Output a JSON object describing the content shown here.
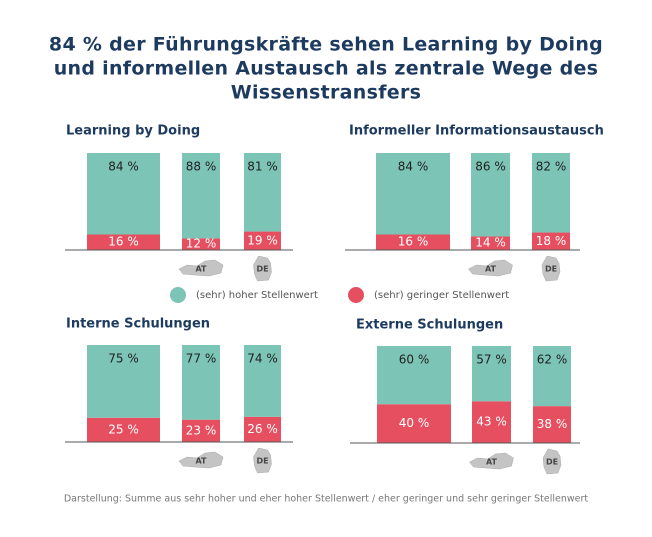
{
  "title": [
    "84 % der Führungskräfte sehen Learning by Doing",
    "und informellen Austausch als zentrale Wege des",
    "Wissenstransfers"
  ],
  "note": "Darstellung: Summe aus sehr hoher und eher hoher Stellenwert / eher geringer und sehr geringer Stellenwert",
  "chart_data": [
    {
      "type": "stacked_bar",
      "title": "Learning by Doing",
      "categories": [
        null,
        "AT",
        "DE"
      ],
      "ylim": [
        0,
        100
      ],
      "series": [
        {
          "name": "(sehr) hoher Stellenwert",
          "color": "#7cc4b6",
          "values": [
            84,
            88,
            81
          ],
          "value_labels": [
            "84 %",
            "88 %",
            "81 %"
          ]
        },
        {
          "name": "(sehr) geringer Stellenwert",
          "color": "#e64f5f",
          "values": [
            16,
            12,
            19
          ],
          "value_labels": [
            "16 %",
            "12 %",
            "19 %"
          ]
        }
      ]
    },
    {
      "type": "stacked_bar",
      "title": "Informeller Informationsaustausch",
      "categories": [
        null,
        "AT",
        "DE"
      ],
      "ylim": [
        0,
        100
      ],
      "series": [
        {
          "color": "#7cc4b6",
          "values": [
            84,
            86,
            82
          ],
          "value_labels": [
            "84 %",
            "86 %",
            "82 %"
          ]
        },
        {
          "color": "#e64f5f",
          "values": [
            16,
            14,
            18
          ],
          "value_labels": [
            "16 %",
            "14 %",
            "18 %"
          ]
        }
      ]
    },
    {
      "type": "stacked_bar",
      "title": "Interne Schulungen",
      "categories": [
        null,
        "AT",
        "DE"
      ],
      "ylim": [
        0,
        100
      ],
      "series": [
        {
          "color": "#7cc4b6",
          "values": [
            75,
            77,
            74
          ],
          "value_labels": [
            "75 %",
            "77 %",
            "74 %"
          ]
        },
        {
          "color": "#e64f5f",
          "values": [
            25,
            23,
            26
          ],
          "value_labels": [
            "25 %",
            "23 %",
            "26 %"
          ]
        }
      ]
    },
    {
      "type": "stacked_bar",
      "title": "Externe Schulungen",
      "categories": [
        null,
        "AT",
        "DE"
      ],
      "ylim": [
        0,
        100
      ],
      "series": [
        {
          "color": "#7cc4b6",
          "values": [
            60,
            57,
            62
          ],
          "value_labels": [
            "60 %",
            "57 %",
            "62 %"
          ]
        },
        {
          "color": "#e64f5f",
          "values": [
            40,
            43,
            38
          ],
          "value_labels": [
            "40 %",
            "43 %",
            "38 %"
          ]
        }
      ]
    }
  ]
}
